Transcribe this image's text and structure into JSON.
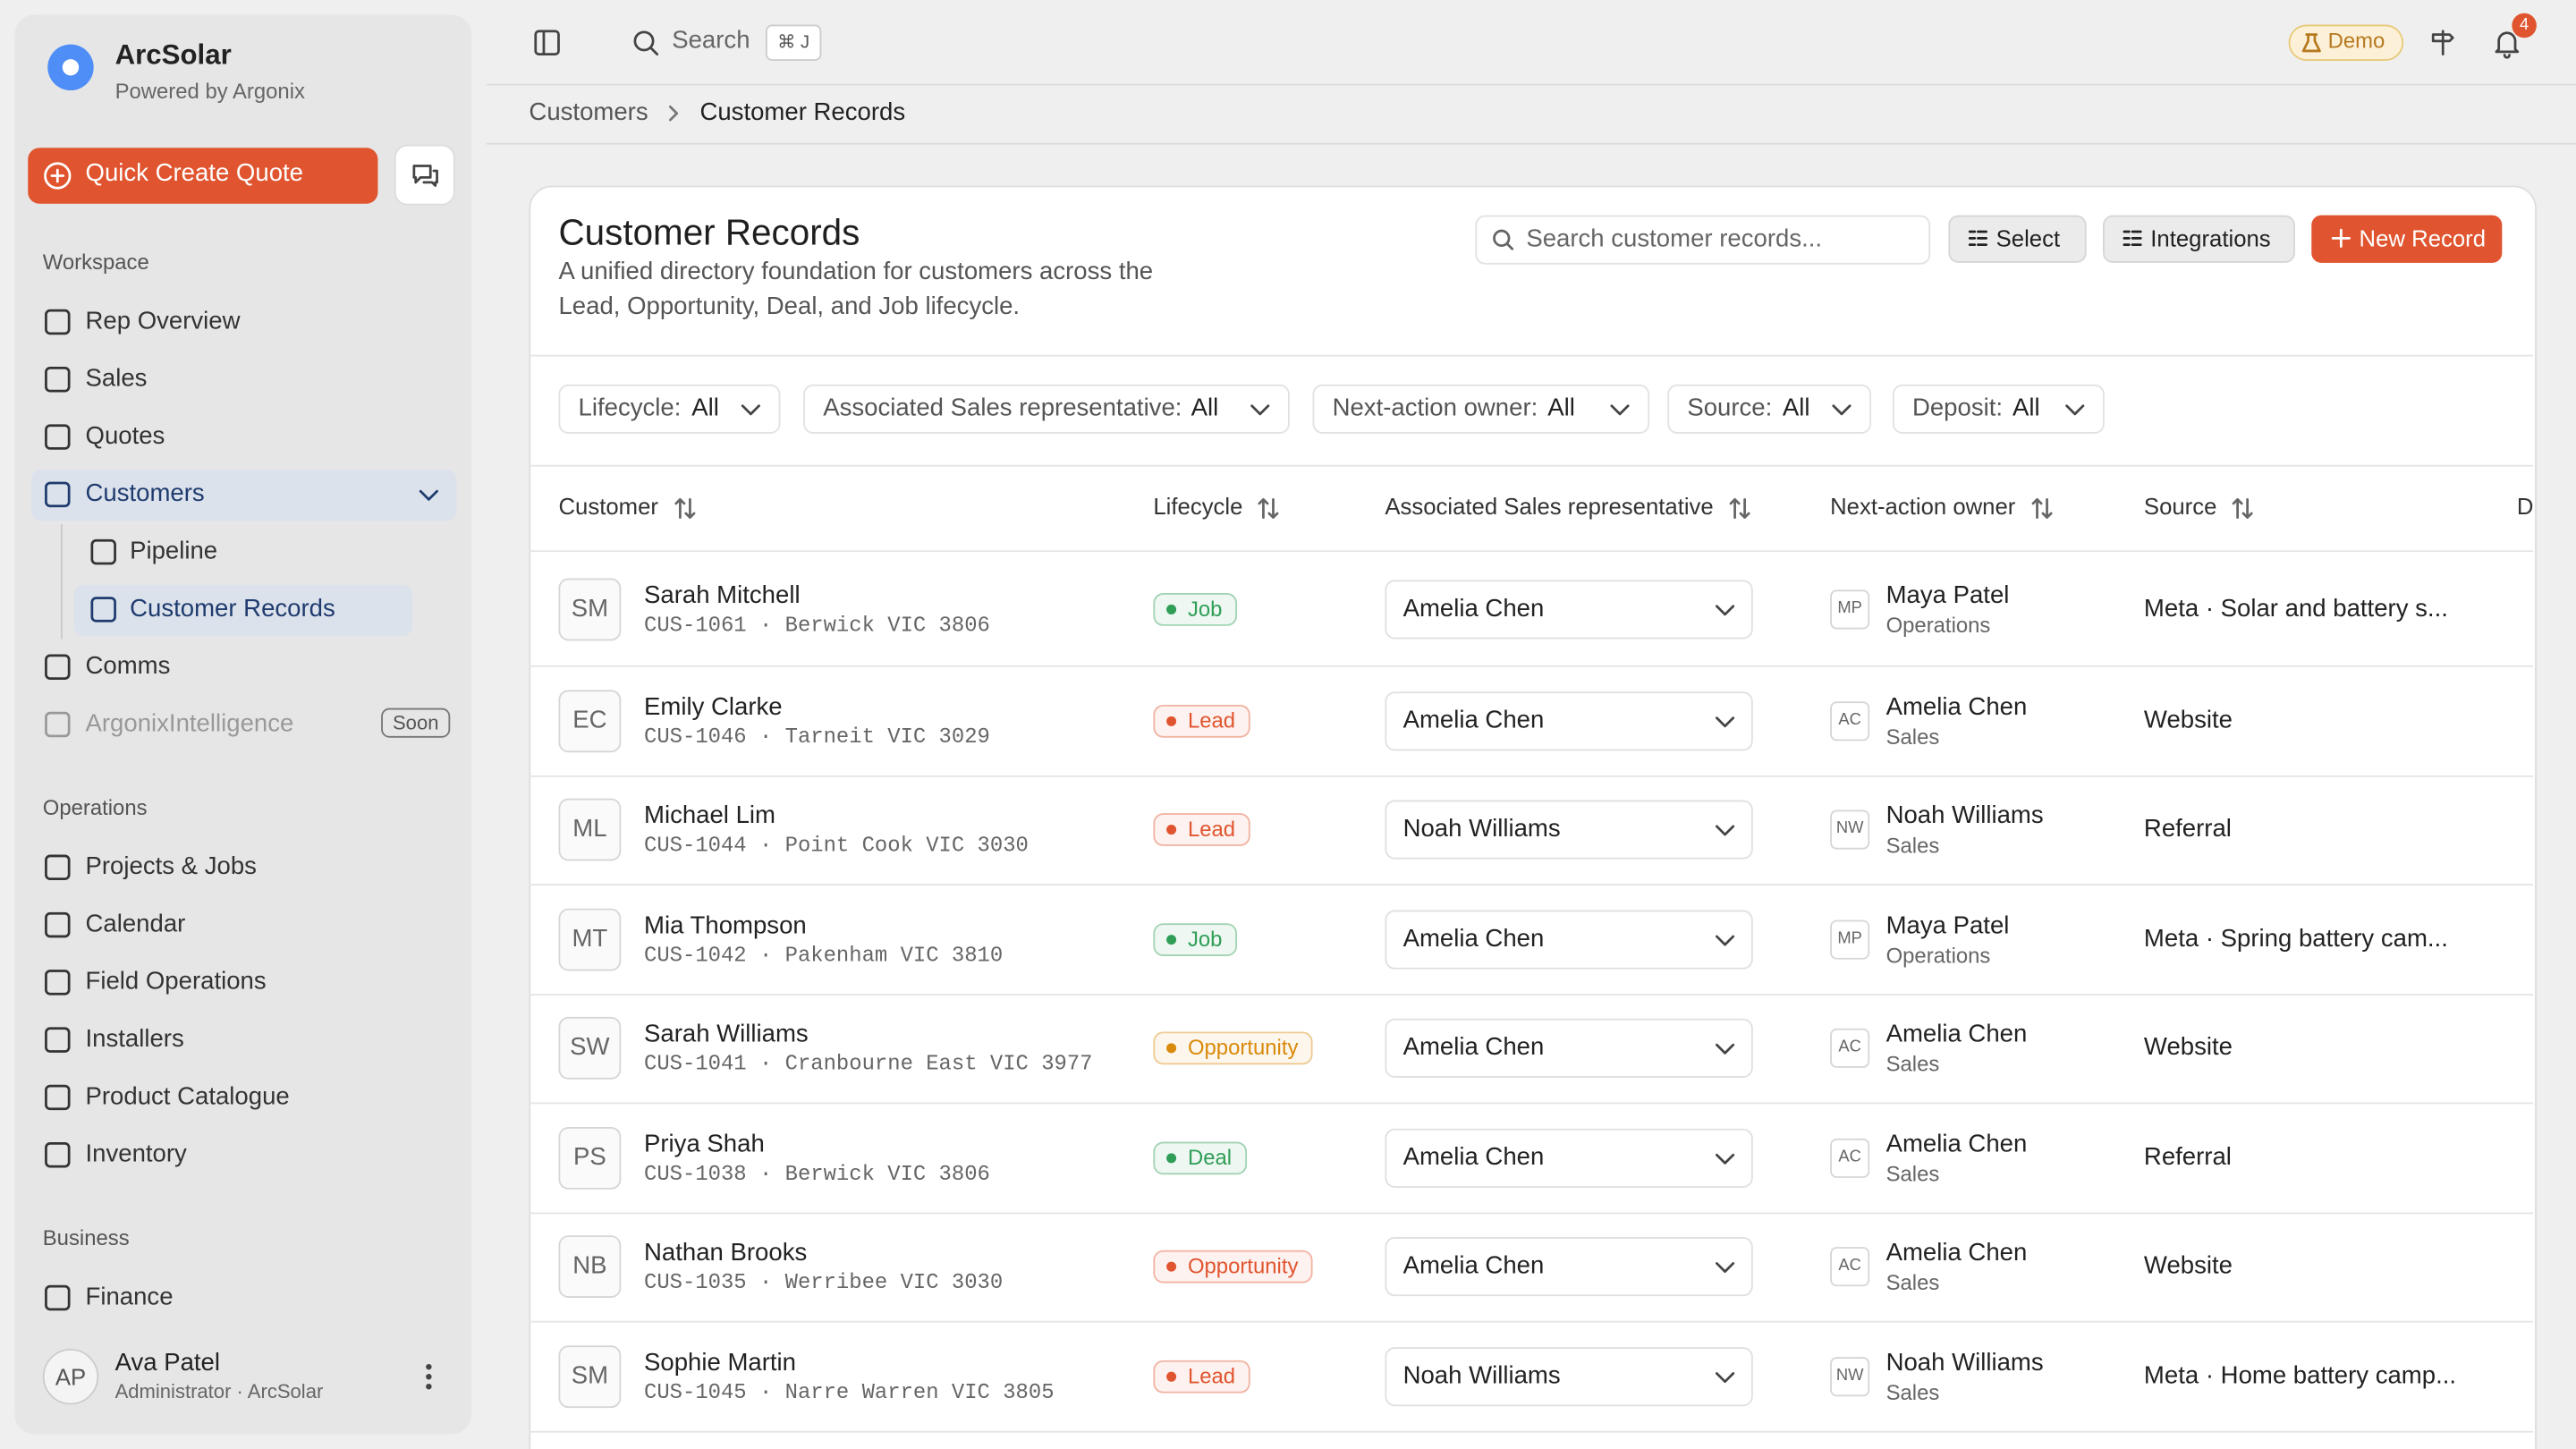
{
  "sidebar": {
    "brand": {
      "name": "ArcSolar",
      "tagline": "Powered by Argonix"
    },
    "quick_create": "Quick Create Quote",
    "sections": [
      {
        "title": "Workspace",
        "items": [
          {
            "label": "Rep Overview"
          },
          {
            "label": "Sales"
          },
          {
            "label": "Quotes"
          },
          {
            "label": "Customers",
            "active": true,
            "expanded": true
          },
          {
            "label": "Pipeline",
            "level": 2
          },
          {
            "label": "Customer Records",
            "level": 2,
            "active": true
          },
          {
            "label": "Comms"
          },
          {
            "label": "ArgonixIntelligence",
            "disabled": true,
            "badge": "Soon"
          }
        ]
      },
      {
        "title": "Operations",
        "items": [
          {
            "label": "Projects & Jobs"
          },
          {
            "label": "Calendar"
          },
          {
            "label": "Field Operations"
          },
          {
            "label": "Installers"
          },
          {
            "label": "Product Catalogue"
          },
          {
            "label": "Inventory"
          }
        ]
      },
      {
        "title": "Business",
        "items": [
          {
            "label": "Finance"
          }
        ]
      }
    ],
    "user": {
      "initials": "AP",
      "name": "Ava Patel",
      "role": "Administrator · ArcSolar"
    }
  },
  "topbar": {
    "search": "Search",
    "shortcut": "⌘ J",
    "demo": "Demo",
    "notifications": 4
  },
  "breadcrumb": [
    "Customers",
    "Customer Records"
  ],
  "panel": {
    "title": "Customer Records",
    "description": [
      "A unified directory foundation for customers across the",
      "Lead, Opportunity, Deal, and Job lifecycle."
    ],
    "search_placeholder": "Search customer records...",
    "buttons": [
      "Select",
      "Integrations",
      "New Record"
    ]
  },
  "filters": [
    {
      "label": "Lifecycle:",
      "value": "All"
    },
    {
      "label": "Associated Sales representative:",
      "value": "All"
    },
    {
      "label": "Next-action owner:",
      "value": "All"
    },
    {
      "label": "Source:",
      "value": "All"
    },
    {
      "label": "Deposit:",
      "value": "All"
    }
  ],
  "table": {
    "columns": [
      "Customer",
      "Lifecycle",
      "Associated Sales representative",
      "Next-action owner",
      "Source",
      "D"
    ],
    "rows": [
      {
        "initials": "SM",
        "name": "Sarah Mitchell",
        "meta": "CUS-1061 · Berwick VIC 3806",
        "lifecycle": "Job",
        "lifecycle_color": "#2f9e57",
        "rep": "Amelia Chen",
        "owner_initials": "MP",
        "owner": "Maya Patel",
        "owner_role": "Operations",
        "source": "Meta · Solar and battery s..."
      },
      {
        "initials": "EC",
        "name": "Emily Clarke",
        "meta": "CUS-1046 · Tarneit VIC 3029",
        "lifecycle": "Lead",
        "lifecycle_color": "#e0552f",
        "rep": "Amelia Chen",
        "owner_initials": "AC",
        "owner": "Amelia Chen",
        "owner_role": "Sales",
        "source": "Website"
      },
      {
        "initials": "ML",
        "name": "Michael Lim",
        "meta": "CUS-1044 · Point Cook VIC 3030",
        "lifecycle": "Lead",
        "lifecycle_color": "#e0552f",
        "rep": "Noah Williams",
        "owner_initials": "NW",
        "owner": "Noah Williams",
        "owner_role": "Sales",
        "source": "Referral"
      },
      {
        "initials": "MT",
        "name": "Mia Thompson",
        "meta": "CUS-1042 · Pakenham VIC 3810",
        "lifecycle": "Job",
        "lifecycle_color": "#2f9e57",
        "rep": "Amelia Chen",
        "owner_initials": "MP",
        "owner": "Maya Patel",
        "owner_role": "Operations",
        "source": "Meta · Spring battery cam..."
      },
      {
        "initials": "SW",
        "name": "Sarah Williams",
        "meta": "CUS-1041 · Cranbourne East VIC 3977",
        "lifecycle": "Opportunity",
        "lifecycle_color": "#d98a0b",
        "rep": "Amelia Chen",
        "owner_initials": "AC",
        "owner": "Amelia Chen",
        "owner_role": "Sales",
        "source": "Website"
      },
      {
        "initials": "PS",
        "name": "Priya Shah",
        "meta": "CUS-1038 · Berwick VIC 3806",
        "lifecycle": "Deal",
        "lifecycle_color": "#2f9e57",
        "rep": "Amelia Chen",
        "owner_initials": "AC",
        "owner": "Amelia Chen",
        "owner_role": "Sales",
        "source": "Referral"
      },
      {
        "initials": "NB",
        "name": "Nathan Brooks",
        "meta": "CUS-1035 · Werribee VIC 3030",
        "lifecycle": "Opportunity",
        "lifecycle_color": "#e0552f",
        "rep": "Amelia Chen",
        "owner_initials": "AC",
        "owner": "Amelia Chen",
        "owner_role": "Sales",
        "source": "Website"
      },
      {
        "initials": "SM",
        "name": "Sophie Martin",
        "meta": "CUS-1045 · Narre Warren VIC 3805",
        "lifecycle": "Lead",
        "lifecycle_color": "#e0552f",
        "rep": "Noah Williams",
        "owner_initials": "NW",
        "owner": "Noah Williams",
        "owner_role": "Sales",
        "source": "Meta · Home battery camp..."
      }
    ]
  }
}
